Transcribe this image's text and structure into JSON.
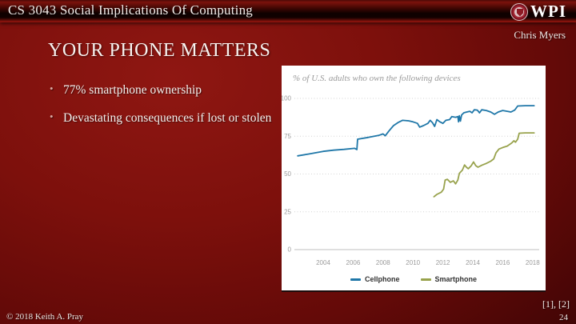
{
  "slide": {
    "header": {
      "course_title": "CS 3043 Social Implications Of Computing",
      "logo_text": "WPI",
      "brand_color": "#a42834"
    },
    "author": "Chris Myers",
    "title": "YOUR PHONE MATTERS",
    "bullets": [
      "77% smartphone ownership",
      "Devastating consequences if lost or stolen"
    ],
    "footer": {
      "copyright": "© 2018 Keith A. Pray",
      "references": "[1], [2]",
      "page_number": "24"
    }
  },
  "chart_data": {
    "type": "line",
    "title": "% of U.S. adults who own the following devices",
    "xlabel": "",
    "ylabel": "",
    "xlim": [
      2002,
      2018.4
    ],
    "ylim": [
      0,
      100
    ],
    "x_ticks": [
      2004,
      2006,
      2008,
      2010,
      2012,
      2014,
      2016,
      2018
    ],
    "y_ticks": [
      0,
      25,
      50,
      75,
      100
    ],
    "grid": "horizontal-dotted",
    "legend_position": "bottom",
    "series": [
      {
        "name": "Cellphone",
        "color": "#1f77a8",
        "points": [
          [
            2002.3,
            62
          ],
          [
            2003,
            63.2
          ],
          [
            2004,
            65
          ],
          [
            2004.7,
            65.8
          ],
          [
            2005.4,
            66.3
          ],
          [
            2006.1,
            67
          ],
          [
            2006.25,
            66.2
          ],
          [
            2006.3,
            73
          ],
          [
            2007,
            74.2
          ],
          [
            2007.7,
            75.5
          ],
          [
            2008,
            76.5
          ],
          [
            2008.15,
            75.3
          ],
          [
            2008.4,
            78.5
          ],
          [
            2008.7,
            82
          ],
          [
            2009,
            84
          ],
          [
            2009.3,
            85.5
          ],
          [
            2009.7,
            85.2
          ],
          [
            2010,
            84.5
          ],
          [
            2010.3,
            83.5
          ],
          [
            2010.45,
            81
          ],
          [
            2010.7,
            82
          ],
          [
            2011,
            83.5
          ],
          [
            2011.15,
            85.5
          ],
          [
            2011.3,
            84
          ],
          [
            2011.45,
            81.5
          ],
          [
            2011.6,
            86
          ],
          [
            2011.8,
            84.5
          ],
          [
            2012,
            83.5
          ],
          [
            2012.2,
            85.5
          ],
          [
            2012.45,
            86
          ],
          [
            2012.6,
            88
          ],
          [
            2012.85,
            87.5
          ],
          [
            2013,
            88
          ],
          [
            2013.05,
            84.5
          ],
          [
            2013.1,
            88.5
          ],
          [
            2013.17,
            85
          ],
          [
            2013.25,
            89
          ],
          [
            2013.4,
            90.5
          ],
          [
            2013.6,
            91
          ],
          [
            2013.8,
            91.5
          ],
          [
            2013.95,
            90.5
          ],
          [
            2014.1,
            92.5
          ],
          [
            2014.3,
            92.3
          ],
          [
            2014.45,
            90.5
          ],
          [
            2014.6,
            92.5
          ],
          [
            2014.9,
            92
          ],
          [
            2015.2,
            91
          ],
          [
            2015.45,
            89.5
          ],
          [
            2015.7,
            91
          ],
          [
            2016,
            92
          ],
          [
            2016.3,
            91.5
          ],
          [
            2016.55,
            91
          ],
          [
            2016.8,
            92.3
          ],
          [
            2017,
            95
          ],
          [
            2017.5,
            95.2
          ],
          [
            2018.1,
            95.2
          ]
        ]
      },
      {
        "name": "Smartphone",
        "color": "#98a24c",
        "points": [
          [
            2011.4,
            35
          ],
          [
            2011.6,
            36.5
          ],
          [
            2011.9,
            38
          ],
          [
            2012.05,
            40
          ],
          [
            2012.15,
            46
          ],
          [
            2012.3,
            46.5
          ],
          [
            2012.5,
            44.5
          ],
          [
            2012.7,
            45.5
          ],
          [
            2012.85,
            43.5
          ],
          [
            2013,
            46
          ],
          [
            2013.1,
            50.5
          ],
          [
            2013.3,
            52.5
          ],
          [
            2013.45,
            56
          ],
          [
            2013.57,
            54.5
          ],
          [
            2013.7,
            53.5
          ],
          [
            2013.9,
            55.5
          ],
          [
            2014.05,
            58
          ],
          [
            2014.2,
            55.5
          ],
          [
            2014.35,
            54.5
          ],
          [
            2014.6,
            55.8
          ],
          [
            2014.9,
            57
          ],
          [
            2015.2,
            58.5
          ],
          [
            2015.4,
            60
          ],
          [
            2015.55,
            64
          ],
          [
            2015.75,
            66.5
          ],
          [
            2016,
            67.5
          ],
          [
            2016.3,
            68.5
          ],
          [
            2016.6,
            70.5
          ],
          [
            2016.75,
            72
          ],
          [
            2016.85,
            71
          ],
          [
            2017,
            73
          ],
          [
            2017.1,
            77
          ],
          [
            2017.5,
            77.2
          ],
          [
            2018.1,
            77.2
          ]
        ]
      }
    ]
  }
}
